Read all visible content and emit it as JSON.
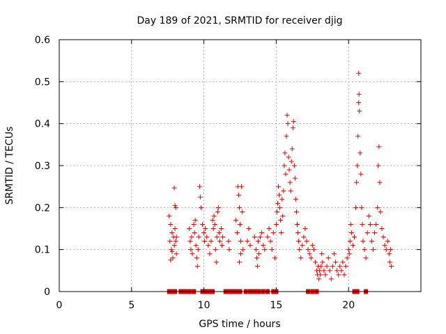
{
  "chart_data": {
    "type": "scatter",
    "title": "Day 189 of 2021, SRMTID for receiver djig",
    "xlabel": "GPS time / hours",
    "ylabel": "SRMTID / TECUs",
    "xlim": [
      0,
      25
    ],
    "ylim": [
      0,
      0.6
    ],
    "x_ticks": [
      0,
      5,
      10,
      15,
      20
    ],
    "x_tick_labels": [
      "0",
      "5",
      "10",
      "15",
      "20"
    ],
    "y_ticks": [
      0,
      0.1,
      0.2,
      0.3,
      0.4,
      0.5,
      0.6
    ],
    "y_tick_labels": [
      "0",
      "0.1",
      "0.2",
      "0.3",
      "0.4",
      "0.5",
      "0.6"
    ],
    "grid": true,
    "marker": "plus",
    "color": "#e00000",
    "series": [
      {
        "name": "SRMTID",
        "points": [
          [
            7.6,
            0.18
          ],
          [
            7.65,
            0.12
          ],
          [
            7.7,
            0.16
          ],
          [
            7.75,
            0.1
          ],
          [
            7.8,
            0.14
          ],
          [
            7.85,
            0.08
          ],
          [
            7.9,
            0.13
          ],
          [
            7.95,
            0.11
          ],
          [
            8.0,
            0.15
          ],
          [
            8.05,
            0.12
          ],
          [
            7.95,
            0.247
          ],
          [
            8.0,
            0.205
          ],
          [
            8.05,
            0.2
          ],
          [
            8.1,
            0.09
          ],
          [
            8.1,
            0.13
          ],
          [
            7.7,
            0.075
          ],
          [
            7.8,
            0.095
          ],
          [
            9.0,
            0.15
          ],
          [
            9.05,
            0.12
          ],
          [
            9.1,
            0.1
          ],
          [
            9.15,
            0.13
          ],
          [
            9.2,
            0.09
          ],
          [
            9.3,
            0.16
          ],
          [
            9.35,
            0.14
          ],
          [
            9.4,
            0.17
          ],
          [
            9.45,
            0.11
          ],
          [
            9.5,
            0.08
          ],
          [
            9.55,
            0.06
          ],
          [
            9.6,
            0.1
          ],
          [
            9.65,
            0.13
          ],
          [
            9.7,
            0.25
          ],
          [
            9.75,
            0.225
          ],
          [
            9.8,
            0.2
          ],
          [
            9.9,
            0.16
          ],
          [
            10.0,
            0.14
          ],
          [
            10.05,
            0.12
          ],
          [
            10.1,
            0.15
          ],
          [
            10.2,
            0.13
          ],
          [
            10.3,
            0.11
          ],
          [
            10.4,
            0.09
          ],
          [
            10.5,
            0.12
          ],
          [
            10.6,
            0.17
          ],
          [
            10.65,
            0.15
          ],
          [
            10.7,
            0.18
          ],
          [
            10.75,
            0.16
          ],
          [
            10.8,
            0.1
          ],
          [
            10.85,
            0.07
          ],
          [
            10.9,
            0.13
          ],
          [
            10.95,
            0.19
          ],
          [
            11.0,
            0.2
          ],
          [
            11.05,
            0.14
          ],
          [
            11.1,
            0.12
          ],
          [
            11.2,
            0.15
          ],
          [
            11.25,
            0.11
          ],
          [
            11.3,
            0.13
          ],
          [
            11.7,
            0.12
          ],
          [
            11.75,
            0.1
          ],
          [
            12.2,
            0.17
          ],
          [
            12.3,
            0.14
          ],
          [
            12.35,
            0.25
          ],
          [
            12.4,
            0.23
          ],
          [
            12.45,
            0.2
          ],
          [
            12.5,
            0.16
          ],
          [
            12.55,
            0.12
          ],
          [
            12.6,
            0.25
          ],
          [
            12.65,
            0.19
          ],
          [
            12.7,
            0.1
          ],
          [
            12.45,
            0.07
          ],
          [
            12.55,
            0.09
          ],
          [
            13.0,
            0.12
          ],
          [
            13.1,
            0.15
          ],
          [
            13.2,
            0.11
          ],
          [
            13.5,
            0.13
          ],
          [
            13.6,
            0.1
          ],
          [
            13.65,
            0.08
          ],
          [
            13.7,
            0.06
          ],
          [
            13.75,
            0.12
          ],
          [
            13.8,
            0.09
          ],
          [
            13.9,
            0.13
          ],
          [
            14.0,
            0.14
          ],
          [
            14.1,
            0.11
          ],
          [
            14.2,
            0.1
          ],
          [
            14.4,
            0.13
          ],
          [
            14.5,
            0.15
          ],
          [
            14.6,
            0.12
          ],
          [
            14.7,
            0.1
          ],
          [
            14.8,
            0.14
          ],
          [
            14.9,
            0.08
          ],
          [
            15.0,
            0.16
          ],
          [
            15.05,
            0.19
          ],
          [
            15.1,
            0.21
          ],
          [
            15.15,
            0.25
          ],
          [
            15.2,
            0.23
          ],
          [
            15.25,
            0.2
          ],
          [
            15.3,
            0.17
          ],
          [
            15.35,
            0.14
          ],
          [
            15.4,
            0.22
          ],
          [
            15.45,
            0.18
          ],
          [
            15.5,
            0.24
          ],
          [
            15.55,
            0.3
          ],
          [
            15.6,
            0.33
          ],
          [
            15.65,
            0.28
          ],
          [
            15.7,
            0.37
          ],
          [
            15.75,
            0.42
          ],
          [
            15.8,
            0.4
          ],
          [
            15.85,
            0.32
          ],
          [
            15.9,
            0.29
          ],
          [
            15.95,
            0.26
          ],
          [
            16.0,
            0.24
          ],
          [
            16.05,
            0.31
          ],
          [
            16.1,
            0.34
          ],
          [
            16.15,
            0.39
          ],
          [
            16.2,
            0.405
          ],
          [
            16.25,
            0.3
          ],
          [
            16.3,
            0.27
          ],
          [
            16.35,
            0.22
          ],
          [
            16.4,
            0.19
          ],
          [
            16.45,
            0.16
          ],
          [
            16.5,
            0.14
          ],
          [
            16.55,
            0.12
          ],
          [
            16.6,
            0.1
          ],
          [
            16.7,
            0.08
          ],
          [
            16.8,
            0.11
          ],
          [
            16.9,
            0.13
          ],
          [
            17.0,
            0.15
          ],
          [
            17.1,
            0.12
          ],
          [
            17.2,
            0.1
          ],
          [
            17.3,
            0.09
          ],
          [
            17.4,
            0.08
          ],
          [
            17.5,
            0.11
          ],
          [
            17.6,
            0.1
          ],
          [
            17.7,
            0.07
          ],
          [
            17.8,
            0.05
          ],
          [
            17.85,
            0.04
          ],
          [
            17.9,
            0.06
          ],
          [
            17.95,
            0.03
          ],
          [
            18.0,
            0.05
          ],
          [
            18.05,
            0.04
          ],
          [
            18.1,
            0.06
          ],
          [
            18.15,
            0.09
          ],
          [
            18.2,
            0.07
          ],
          [
            18.3,
            0.05
          ],
          [
            18.4,
            0.04
          ],
          [
            18.5,
            0.06
          ],
          [
            18.6,
            0.08
          ],
          [
            18.7,
            0.05
          ],
          [
            18.8,
            0.03
          ],
          [
            18.9,
            0.06
          ],
          [
            19.0,
            0.09
          ],
          [
            19.1,
            0.07
          ],
          [
            19.2,
            0.05
          ],
          [
            19.3,
            0.04
          ],
          [
            19.4,
            0.06
          ],
          [
            19.5,
            0.05
          ],
          [
            19.6,
            0.07
          ],
          [
            19.7,
            0.04
          ],
          [
            19.8,
            0.06
          ],
          [
            19.9,
            0.08
          ],
          [
            20.0,
            0.1
          ],
          [
            20.05,
            0.09
          ],
          [
            20.1,
            0.12
          ],
          [
            20.15,
            0.16
          ],
          [
            20.2,
            0.14
          ],
          [
            20.3,
            0.11
          ],
          [
            20.4,
            0.13
          ],
          [
            20.5,
            0.2
          ],
          [
            20.55,
            0.26
          ],
          [
            20.6,
            0.3
          ],
          [
            20.65,
            0.37
          ],
          [
            20.7,
            0.45
          ],
          [
            20.72,
            0.47
          ],
          [
            20.75,
            0.43
          ],
          [
            20.7,
            0.52
          ],
          [
            20.8,
            0.33
          ],
          [
            20.85,
            0.28
          ],
          [
            20.9,
            0.2
          ],
          [
            20.95,
            0.16
          ],
          [
            21.0,
            0.12
          ],
          [
            21.1,
            0.1
          ],
          [
            21.2,
            0.08
          ],
          [
            21.3,
            0.14
          ],
          [
            21.4,
            0.18
          ],
          [
            21.5,
            0.16
          ],
          [
            21.6,
            0.12
          ],
          [
            21.7,
            0.1
          ],
          [
            21.8,
            0.14
          ],
          [
            21.9,
            0.16
          ],
          [
            22.0,
            0.2
          ],
          [
            22.05,
            0.3
          ],
          [
            22.1,
            0.345
          ],
          [
            22.15,
            0.26
          ],
          [
            22.2,
            0.19
          ],
          [
            22.3,
            0.15
          ],
          [
            22.4,
            0.13
          ],
          [
            22.5,
            0.11
          ],
          [
            22.6,
            0.1
          ],
          [
            22.7,
            0.12
          ],
          [
            22.8,
            0.09
          ],
          [
            22.85,
            0.07
          ],
          [
            22.9,
            0.1
          ],
          [
            22.95,
            0.06
          ]
        ]
      }
    ],
    "zero_marks_x": [
      7.6,
      7.8,
      8.0,
      8.4,
      8.6,
      8.8,
      9.0,
      9.3,
      9.9,
      10.1,
      10.3,
      10.5,
      10.6,
      11.5,
      11.7,
      11.9,
      12.1,
      12.3,
      12.5,
      12.9,
      13.2,
      13.4,
      13.6,
      13.8,
      14.1,
      14.4,
      14.8,
      15.0,
      17.2,
      17.5,
      17.8,
      20.4,
      20.6,
      21.2
    ]
  }
}
